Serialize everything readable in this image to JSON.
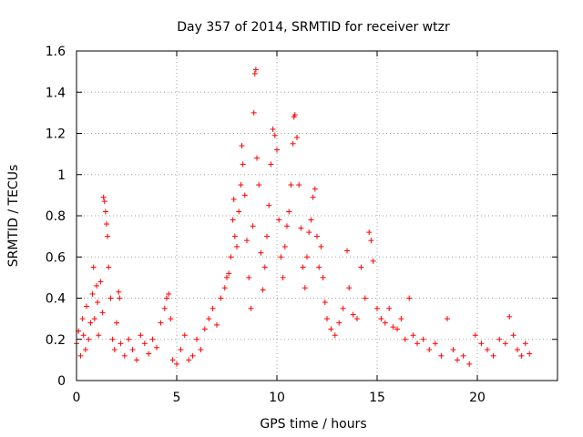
{
  "chart_data": {
    "type": "scatter",
    "title": "Day 357 of 2014, SRMTID for receiver wtzr",
    "xlabel": "GPS time / hours",
    "ylabel": "SRMTID / TECUs",
    "xlim": [
      0,
      24
    ],
    "ylim": [
      0,
      1.6
    ],
    "xticks": [
      0,
      5,
      10,
      15,
      20
    ],
    "xtick_labels": [
      "0",
      "5",
      "10",
      "15",
      "20"
    ],
    "yticks": [
      0,
      0.2,
      0.4,
      0.6,
      0.8,
      1,
      1.2,
      1.4,
      1.6
    ],
    "ytick_labels": [
      "0",
      "0.2",
      "0.4",
      "0.6",
      "0.8",
      "1",
      "1.2",
      "1.4",
      "1.6"
    ],
    "grid": true,
    "marker": "+",
    "color": "#ff0000",
    "series": [
      {
        "name": "SRMTID",
        "points": [
          [
            0.0,
            0.18
          ],
          [
            0.1,
            0.24
          ],
          [
            0.2,
            0.12
          ],
          [
            0.3,
            0.3
          ],
          [
            0.35,
            0.22
          ],
          [
            0.45,
            0.15
          ],
          [
            0.5,
            0.36
          ],
          [
            0.6,
            0.2
          ],
          [
            0.7,
            0.28
          ],
          [
            0.8,
            0.42
          ],
          [
            0.85,
            0.55
          ],
          [
            0.9,
            0.3
          ],
          [
            1.0,
            0.46
          ],
          [
            1.05,
            0.38
          ],
          [
            1.1,
            0.22
          ],
          [
            1.2,
            0.48
          ],
          [
            1.3,
            0.33
          ],
          [
            1.35,
            0.89
          ],
          [
            1.4,
            0.87
          ],
          [
            1.45,
            0.82
          ],
          [
            1.5,
            0.76
          ],
          [
            1.55,
            0.7
          ],
          [
            1.6,
            0.55
          ],
          [
            1.7,
            0.4
          ],
          [
            1.8,
            0.2
          ],
          [
            1.9,
            0.15
          ],
          [
            2.0,
            0.28
          ],
          [
            2.1,
            0.43
          ],
          [
            2.15,
            0.4
          ],
          [
            2.2,
            0.18
          ],
          [
            2.4,
            0.12
          ],
          [
            2.6,
            0.2
          ],
          [
            2.8,
            0.15
          ],
          [
            3.0,
            0.1
          ],
          [
            3.2,
            0.22
          ],
          [
            3.4,
            0.18
          ],
          [
            3.6,
            0.13
          ],
          [
            3.8,
            0.2
          ],
          [
            4.0,
            0.16
          ],
          [
            4.2,
            0.28
          ],
          [
            4.4,
            0.35
          ],
          [
            4.5,
            0.4
          ],
          [
            4.6,
            0.42
          ],
          [
            4.7,
            0.3
          ],
          [
            4.8,
            0.1
          ],
          [
            5.0,
            0.08
          ],
          [
            5.2,
            0.15
          ],
          [
            5.4,
            0.22
          ],
          [
            5.6,
            0.1
          ],
          [
            5.8,
            0.12
          ],
          [
            6.0,
            0.2
          ],
          [
            6.2,
            0.15
          ],
          [
            6.4,
            0.25
          ],
          [
            6.6,
            0.3
          ],
          [
            6.8,
            0.35
          ],
          [
            7.0,
            0.27
          ],
          [
            7.2,
            0.4
          ],
          [
            7.4,
            0.45
          ],
          [
            7.5,
            0.5
          ],
          [
            7.6,
            0.52
          ],
          [
            7.7,
            0.6
          ],
          [
            7.8,
            0.78
          ],
          [
            7.85,
            0.88
          ],
          [
            7.9,
            0.7
          ],
          [
            8.0,
            0.65
          ],
          [
            8.1,
            0.82
          ],
          [
            8.2,
            0.95
          ],
          [
            8.25,
            1.14
          ],
          [
            8.3,
            1.05
          ],
          [
            8.4,
            0.9
          ],
          [
            8.5,
            0.68
          ],
          [
            8.6,
            0.5
          ],
          [
            8.7,
            0.35
          ],
          [
            8.8,
            0.75
          ],
          [
            8.85,
            1.3
          ],
          [
            8.9,
            1.49
          ],
          [
            8.95,
            1.51
          ],
          [
            9.0,
            1.08
          ],
          [
            9.1,
            0.95
          ],
          [
            9.2,
            0.62
          ],
          [
            9.3,
            0.44
          ],
          [
            9.4,
            0.55
          ],
          [
            9.5,
            0.7
          ],
          [
            9.6,
            0.85
          ],
          [
            9.7,
            1.05
          ],
          [
            9.8,
            1.22
          ],
          [
            9.9,
            1.19
          ],
          [
            10.0,
            1.12
          ],
          [
            10.1,
            0.78
          ],
          [
            10.2,
            0.6
          ],
          [
            10.3,
            0.5
          ],
          [
            10.4,
            0.65
          ],
          [
            10.5,
            0.75
          ],
          [
            10.6,
            0.82
          ],
          [
            10.7,
            0.95
          ],
          [
            10.8,
            1.15
          ],
          [
            10.85,
            1.28
          ],
          [
            10.9,
            1.29
          ],
          [
            11.0,
            1.18
          ],
          [
            11.1,
            0.95
          ],
          [
            11.2,
            0.74
          ],
          [
            11.3,
            0.55
          ],
          [
            11.4,
            0.45
          ],
          [
            11.5,
            0.6
          ],
          [
            11.6,
            0.72
          ],
          [
            11.7,
            0.78
          ],
          [
            11.8,
            0.89
          ],
          [
            11.9,
            0.93
          ],
          [
            12.0,
            0.7
          ],
          [
            12.1,
            0.55
          ],
          [
            12.2,
            0.65
          ],
          [
            12.3,
            0.5
          ],
          [
            12.4,
            0.38
          ],
          [
            12.5,
            0.3
          ],
          [
            12.7,
            0.25
          ],
          [
            12.9,
            0.22
          ],
          [
            13.1,
            0.28
          ],
          [
            13.3,
            0.35
          ],
          [
            13.5,
            0.63
          ],
          [
            13.6,
            0.45
          ],
          [
            13.8,
            0.32
          ],
          [
            14.0,
            0.3
          ],
          [
            14.2,
            0.55
          ],
          [
            14.4,
            0.4
          ],
          [
            14.6,
            0.72
          ],
          [
            14.7,
            0.68
          ],
          [
            14.8,
            0.58
          ],
          [
            15.0,
            0.35
          ],
          [
            15.2,
            0.3
          ],
          [
            15.4,
            0.28
          ],
          [
            15.6,
            0.35
          ],
          [
            15.8,
            0.26
          ],
          [
            16.0,
            0.25
          ],
          [
            16.2,
            0.3
          ],
          [
            16.4,
            0.2
          ],
          [
            16.6,
            0.4
          ],
          [
            16.8,
            0.22
          ],
          [
            17.0,
            0.18
          ],
          [
            17.3,
            0.2
          ],
          [
            17.6,
            0.15
          ],
          [
            17.9,
            0.18
          ],
          [
            18.2,
            0.12
          ],
          [
            18.5,
            0.3
          ],
          [
            18.8,
            0.15
          ],
          [
            19.0,
            0.1
          ],
          [
            19.3,
            0.12
          ],
          [
            19.6,
            0.08
          ],
          [
            19.9,
            0.22
          ],
          [
            20.2,
            0.18
          ],
          [
            20.5,
            0.15
          ],
          [
            20.8,
            0.12
          ],
          [
            21.1,
            0.2
          ],
          [
            21.4,
            0.18
          ],
          [
            21.6,
            0.31
          ],
          [
            21.8,
            0.22
          ],
          [
            22.0,
            0.15
          ],
          [
            22.2,
            0.12
          ],
          [
            22.4,
            0.18
          ],
          [
            22.6,
            0.13
          ]
        ]
      }
    ]
  }
}
